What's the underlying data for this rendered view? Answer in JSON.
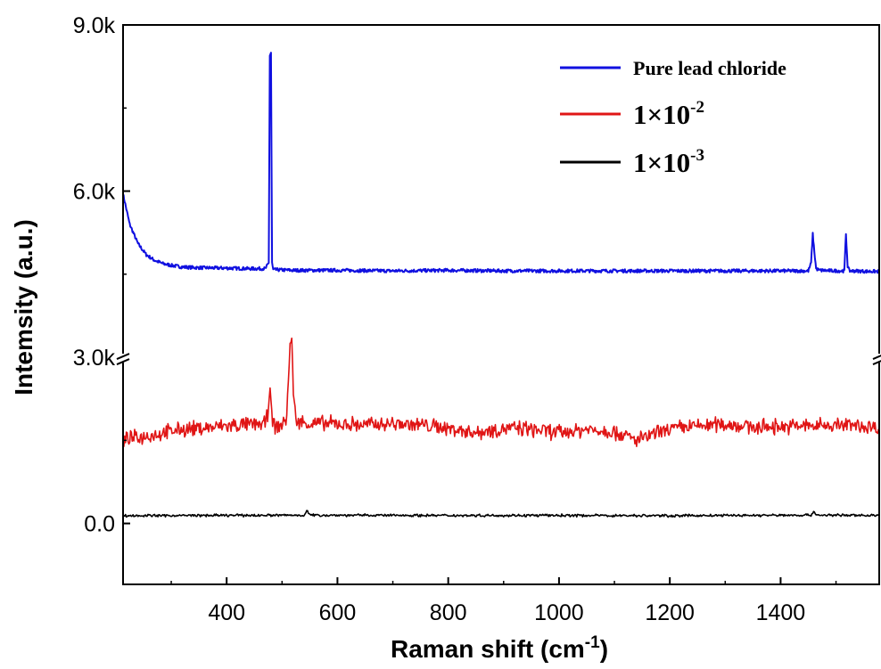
{
  "chart_data": {
    "type": "line",
    "xlabel": "Raman shift (cm",
    "xlabel_sup": "-1",
    "xlabel_close": ")",
    "ylabel": "Intemsity (a.u.)",
    "xlim": [
      213,
      1578
    ],
    "ylim": [
      -1100,
      9000
    ],
    "axis_break_at": 3000,
    "grid": false,
    "legend_placement": "top-right",
    "x_ticks": [
      {
        "value": 400,
        "label": "400"
      },
      {
        "value": 600,
        "label": "600"
      },
      {
        "value": 800,
        "label": "800"
      },
      {
        "value": 1000,
        "label": "1000"
      },
      {
        "value": 1200,
        "label": "1200"
      },
      {
        "value": 1400,
        "label": "1400"
      }
    ],
    "y_ticks": [
      {
        "value": 0,
        "label": "0.0"
      },
      {
        "value": 3000,
        "label": "3.0k"
      },
      {
        "value": 6000,
        "label": "6.0k"
      },
      {
        "value": 9000,
        "label": "9.0k"
      }
    ],
    "series": [
      {
        "name": "Pure lead chloride",
        "color": "#1010e0",
        "x": [
          213,
          225,
          240,
          255,
          270,
          285,
          300,
          320,
          340,
          360,
          400,
          440,
          470,
          476,
          478,
          480,
          482,
          484,
          490,
          520,
          600,
          700,
          800,
          900,
          1000,
          1100,
          1200,
          1300,
          1400,
          1450,
          1455,
          1458,
          1461,
          1464,
          1470,
          1500,
          1515,
          1518,
          1521,
          1524,
          1530,
          1560,
          1578
        ],
        "y": [
          5950,
          5400,
          5050,
          4850,
          4750,
          4690,
          4660,
          4630,
          4620,
          4615,
          4610,
          4600,
          4600,
          4700,
          8450,
          8500,
          4700,
          4580,
          4580,
          4570,
          4570,
          4560,
          4570,
          4560,
          4560,
          4560,
          4560,
          4560,
          4560,
          4560,
          4700,
          5220,
          4900,
          4600,
          4570,
          4560,
          4560,
          5230,
          4650,
          4560,
          4560,
          4550,
          4550
        ]
      },
      {
        "name": "1×10",
        "name_sup": "-2",
        "color": "#e01515",
        "x": [
          213,
          240,
          280,
          320,
          360,
          400,
          440,
          470,
          475,
          478,
          481,
          490,
          500,
          508,
          512,
          515,
          518,
          521,
          525,
          535,
          560,
          600,
          650,
          700,
          750,
          800,
          850,
          900,
          950,
          1000,
          1050,
          1100,
          1140,
          1200,
          1250,
          1300,
          1350,
          1400,
          1450,
          1500,
          1550,
          1578
        ],
        "y": [
          1500,
          1550,
          1620,
          1700,
          1720,
          1760,
          1780,
          1800,
          2000,
          2650,
          1900,
          1700,
          1780,
          1900,
          2700,
          3300,
          3250,
          2300,
          1850,
          1820,
          1800,
          1800,
          1780,
          1800,
          1780,
          1720,
          1640,
          1720,
          1700,
          1640,
          1700,
          1660,
          1500,
          1700,
          1760,
          1800,
          1740,
          1750,
          1760,
          1780,
          1760,
          1720
        ],
        "noise_amp": 170
      },
      {
        "name": "1×10",
        "name_sup": "-3",
        "color": "#000000",
        "x": [
          213,
          400,
          540,
          545,
          550,
          800,
          1000,
          1200,
          1455,
          1460,
          1465,
          1578
        ],
        "y": [
          140,
          145,
          150,
          230,
          150,
          145,
          145,
          140,
          150,
          220,
          150,
          145
        ],
        "noise_amp": 28
      }
    ]
  }
}
